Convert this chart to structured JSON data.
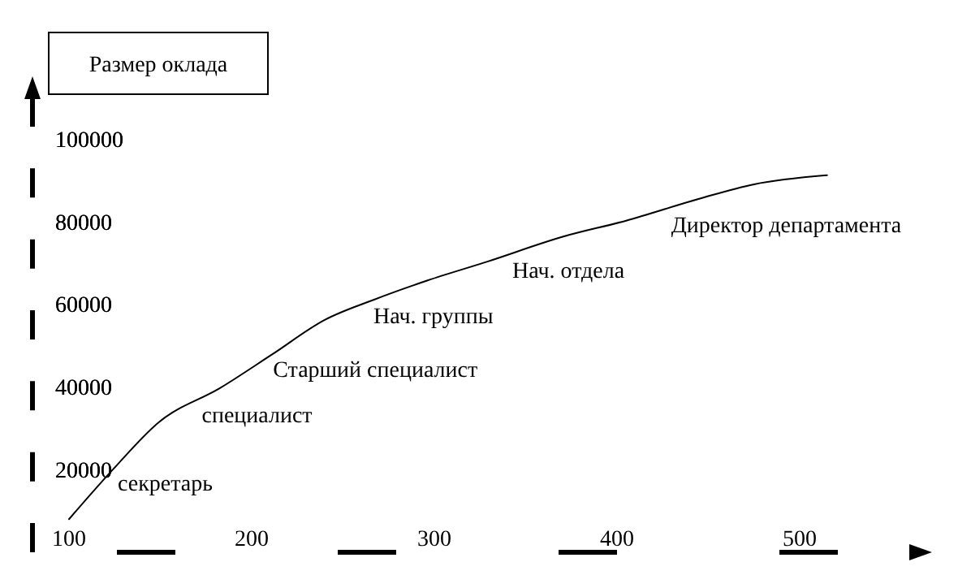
{
  "chart_data": {
    "type": "line",
    "ylabel": "Размер оклада",
    "x": [
      100,
      124,
      149,
      183,
      211,
      240,
      267,
      296,
      329,
      371,
      405,
      445,
      475,
      515
    ],
    "series": [
      {
        "color": "#000000",
        "values": [
          8000,
          20000,
          31400,
          39800,
          47800,
          56200,
          61100,
          65700,
          70300,
          76400,
          80200,
          85500,
          89000,
          91200
        ]
      }
    ],
    "xlim": [
      80,
      560
    ],
    "xticks": [
      100,
      200,
      300,
      400,
      500
    ],
    "ylim": [
      0,
      110000
    ],
    "yticks": [
      20000,
      40000,
      60000,
      80000,
      100000
    ],
    "annotations": [
      {
        "text": "секретарь",
        "x": 124,
        "y": 20000
      },
      {
        "text": "специалист",
        "x": 170,
        "y": 36400
      },
      {
        "text": "Старший специалист",
        "x": 209,
        "y": 47400
      },
      {
        "text": "Нач. группы",
        "x": 264,
        "y": 60500
      },
      {
        "text": "Нач. отдела",
        "x": 340,
        "y": 71400
      },
      {
        "text": "Директор департамента",
        "x": 427,
        "y": 82500
      }
    ]
  }
}
